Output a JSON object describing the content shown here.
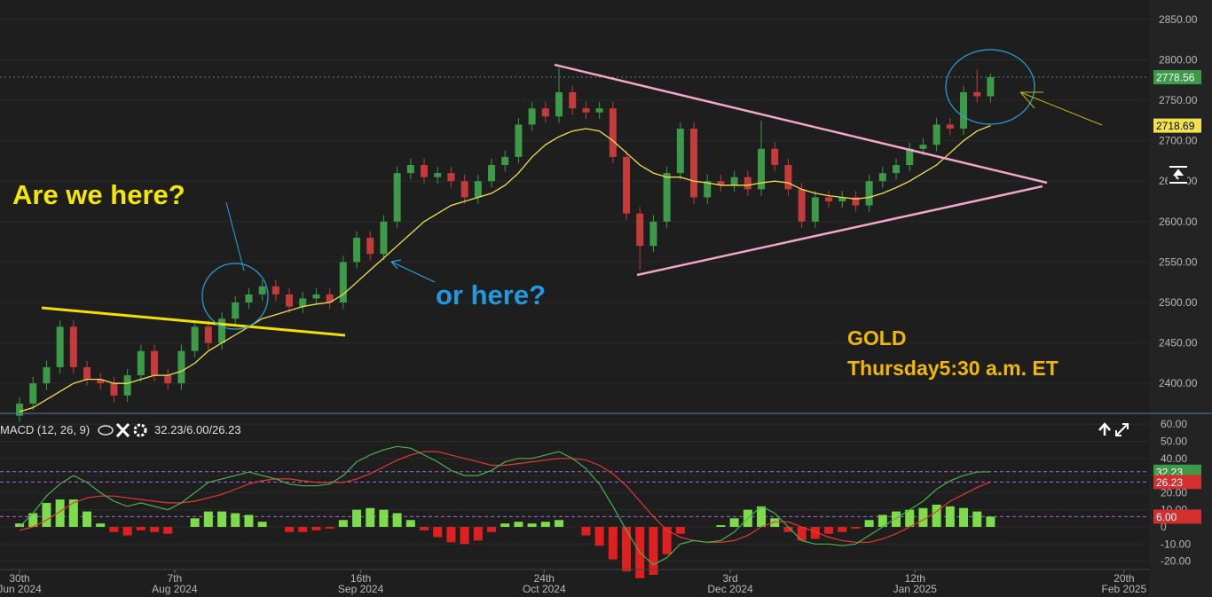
{
  "chart_data": [
    {
      "type": "candlestick",
      "open": [
        2360,
        2375,
        2400,
        2420,
        2470,
        2420,
        2405,
        2400,
        2385,
        2410,
        2440,
        2410,
        2400,
        2440,
        2470,
        2450,
        2480,
        2500,
        2510,
        2520,
        2510,
        2495,
        2505,
        2510,
        2500,
        2550,
        2580,
        2560,
        2600,
        2660,
        2670,
        2655,
        2660,
        2650,
        2630,
        2650,
        2670,
        2680,
        2720,
        2740,
        2730,
        2760,
        2740,
        2735,
        2740,
        2680,
        2610,
        2570,
        2600,
        2660,
        2715,
        2630,
        2650,
        2645,
        2655,
        2640,
        2690,
        2670,
        2640,
        2600,
        2630,
        2625,
        2630,
        2620,
        2650,
        2660,
        2670,
        2690,
        2695,
        2720,
        2715,
        2760,
        2755
      ],
      "high": [
        2383,
        2408,
        2428,
        2478,
        2478,
        2428,
        2413,
        2408,
        2418,
        2448,
        2448,
        2418,
        2448,
        2478,
        2478,
        2488,
        2508,
        2518,
        2528,
        2528,
        2518,
        2513,
        2518,
        2518,
        2558,
        2588,
        2588,
        2608,
        2668,
        2678,
        2678,
        2668,
        2668,
        2658,
        2658,
        2678,
        2688,
        2728,
        2748,
        2748,
        2790,
        2768,
        2748,
        2748,
        2748,
        2688,
        2618,
        2608,
        2668,
        2723,
        2723,
        2658,
        2658,
        2663,
        2663,
        2725,
        2698,
        2678,
        2648,
        2638,
        2638,
        2638,
        2638,
        2658,
        2668,
        2678,
        2698,
        2703,
        2728,
        2728,
        2768,
        2788,
        2783
      ],
      "low": [
        2352,
        2367,
        2392,
        2412,
        2412,
        2397,
        2392,
        2377,
        2377,
        2402,
        2402,
        2392,
        2392,
        2432,
        2442,
        2442,
        2472,
        2492,
        2502,
        2502,
        2487,
        2487,
        2497,
        2492,
        2492,
        2542,
        2552,
        2552,
        2592,
        2652,
        2647,
        2647,
        2642,
        2622,
        2622,
        2642,
        2662,
        2672,
        2712,
        2722,
        2722,
        2732,
        2727,
        2727,
        2672,
        2602,
        2540,
        2562,
        2592,
        2652,
        2622,
        2622,
        2637,
        2637,
        2632,
        2632,
        2662,
        2632,
        2592,
        2592,
        2617,
        2617,
        2612,
        2612,
        2642,
        2652,
        2662,
        2682,
        2687,
        2707,
        2707,
        2747,
        2747
      ],
      "close": [
        2375,
        2400,
        2420,
        2470,
        2420,
        2405,
        2400,
        2385,
        2410,
        2440,
        2410,
        2400,
        2440,
        2470,
        2450,
        2480,
        2500,
        2510,
        2520,
        2510,
        2495,
        2505,
        2510,
        2500,
        2550,
        2580,
        2560,
        2600,
        2660,
        2670,
        2655,
        2660,
        2650,
        2630,
        2650,
        2670,
        2680,
        2720,
        2740,
        2730,
        2760,
        2740,
        2735,
        2740,
        2680,
        2610,
        2570,
        2600,
        2660,
        2715,
        2630,
        2650,
        2645,
        2655,
        2640,
        2690,
        2670,
        2640,
        2600,
        2630,
        2625,
        2630,
        2620,
        2650,
        2660,
        2670,
        2690,
        2695,
        2720,
        2715,
        2760,
        2755,
        2778.56
      ],
      "up_color": "#3d9a48",
      "down_color": "#c43b3b",
      "ma": {
        "color": "#f2e14c",
        "values": [
          2365,
          2370,
          2380,
          2390,
          2400,
          2405,
          2405,
          2400,
          2400,
          2405,
          2410,
          2410,
          2415,
          2425,
          2440,
          2450,
          2460,
          2470,
          2480,
          2485,
          2490,
          2495,
          2498,
          2500,
          2510,
          2525,
          2540,
          2555,
          2570,
          2585,
          2600,
          2610,
          2620,
          2625,
          2630,
          2635,
          2645,
          2660,
          2680,
          2695,
          2705,
          2712,
          2715,
          2712,
          2700,
          2685,
          2670,
          2660,
          2655,
          2655,
          2650,
          2648,
          2645,
          2645,
          2645,
          2648,
          2650,
          2648,
          2640,
          2635,
          2632,
          2630,
          2628,
          2630,
          2635,
          2642,
          2650,
          2660,
          2670,
          2685,
          2700,
          2712,
          2718.69
        ]
      },
      "xlim": [
        -1.45,
        83.75
      ],
      "ylim": [
        2364,
        2874
      ],
      "yticks": [
        {
          "value": 2400,
          "label": "2400.00"
        },
        {
          "value": 2450,
          "label": "2450.00"
        },
        {
          "value": 2500,
          "label": "2500.00"
        },
        {
          "value": 2550,
          "label": "2550.00"
        },
        {
          "value": 2600,
          "label": "2600.00"
        },
        {
          "value": 2650,
          "label": "2650.00"
        },
        {
          "value": 2700,
          "label": "2700.00"
        },
        {
          "value": 2750,
          "label": "2750.00"
        },
        {
          "value": 2800,
          "label": "2800.00"
        },
        {
          "value": 2850,
          "label": "2850.00"
        }
      ],
      "annotations": [
        "Are we here?",
        "or here?",
        "GOLD",
        "Thursday5:30 a.m. ET"
      ]
    },
    {
      "type": "macd",
      "title": "MACD (12, 26, 9)",
      "readout": "32.23/6.00/26.23",
      "macd": {
        "color": "#4caf50",
        "values": [
          0,
          8,
          18,
          25,
          30,
          26,
          20,
          15,
          12,
          14,
          12,
          10,
          14,
          20,
          26,
          28,
          30,
          32,
          30,
          28,
          25,
          24,
          24,
          25,
          30,
          38,
          42,
          45,
          47,
          46,
          42,
          38,
          33,
          30,
          30,
          33,
          38,
          40,
          40,
          42,
          44,
          40,
          34,
          25,
          12,
          -2,
          -15,
          -22,
          -18,
          -10,
          -8,
          -9,
          -8,
          -3,
          5,
          12,
          8,
          0,
          -8,
          -10,
          -10,
          -11,
          -10,
          -5,
          0,
          5,
          10,
          15,
          22,
          27,
          30,
          32,
          32.23
        ]
      },
      "signal": {
        "color": "#e53935",
        "values": [
          -2,
          0,
          4,
          9,
          14,
          17,
          18,
          18,
          17,
          16,
          15,
          14,
          14,
          15,
          17,
          19,
          22,
          25,
          27,
          28,
          28,
          27,
          26,
          26,
          26,
          28,
          31,
          35,
          39,
          42,
          44,
          44,
          42,
          40,
          38,
          36,
          36,
          37,
          38,
          39,
          40,
          40,
          39,
          36,
          31,
          24,
          15,
          6,
          -2,
          -6,
          -8,
          -9,
          -9,
          -8,
          -5,
          0,
          3,
          3,
          0,
          -3,
          -6,
          -8,
          -9,
          -9,
          -7,
          -4,
          0,
          4,
          9,
          15,
          19,
          23,
          26.23
        ]
      },
      "histogram": {
        "up_color": "#7ddc4a",
        "down_color": "#e02020",
        "values": [
          2,
          8,
          14,
          16,
          16,
          9,
          2,
          -3,
          -5,
          -2,
          -3,
          -4,
          0,
          5,
          9,
          9,
          8,
          7,
          3,
          0,
          -3,
          -3,
          -2,
          -1,
          4,
          10,
          11,
          10,
          8,
          4,
          -2,
          -6,
          -9,
          -10,
          -8,
          -3,
          2,
          3,
          2,
          3,
          4,
          0,
          -5,
          -11,
          -19,
          -26,
          -30,
          -28,
          -16,
          -4,
          0,
          0,
          1,
          5,
          10,
          12,
          5,
          -3,
          -8,
          -7,
          -4,
          -3,
          -1,
          4,
          7,
          9,
          10,
          11,
          13,
          12,
          11,
          9,
          6
        ]
      },
      "hist_tag": "6.00",
      "xlim": [
        -1.45,
        83.75
      ],
      "ylim": [
        -24.9,
        65.8
      ],
      "yticks": [
        {
          "value": -20,
          "label": "-20.00"
        },
        {
          "value": -10,
          "label": "-10.00"
        },
        {
          "value": 0,
          "label": "0"
        },
        {
          "value": 10,
          "label": "10.00"
        },
        {
          "value": 20,
          "label": "20.00"
        },
        {
          "value": 30,
          "label": "30.00"
        },
        {
          "value": 40,
          "label": "40.00"
        },
        {
          "value": 50,
          "label": "50.00"
        },
        {
          "value": 60,
          "label": "60.00"
        }
      ],
      "xticks": [
        {
          "value": 0,
          "label": "30th",
          "sublabel": "Jun 2024"
        },
        {
          "value": 11.5,
          "label": "7th",
          "sublabel": "Aug 2024"
        },
        {
          "value": 25.3,
          "label": "16th",
          "sublabel": "Sep 2024"
        },
        {
          "value": 38.9,
          "label": "24th",
          "sublabel": "Oct 2024"
        },
        {
          "value": 52.7,
          "label": "3rd",
          "sublabel": "Dec 2024"
        },
        {
          "value": 66.4,
          "label": "12th",
          "sublabel": "Jan 2025"
        },
        {
          "value": 81.9,
          "label": "20th",
          "sublabel": "Feb 2025"
        }
      ]
    }
  ]
}
